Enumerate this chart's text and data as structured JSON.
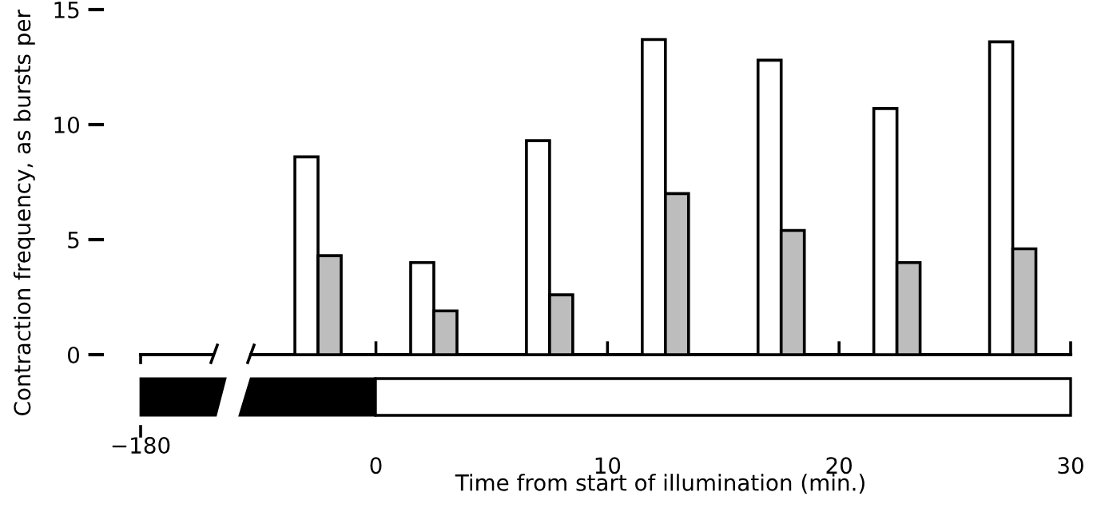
{
  "chart_data": {
    "type": "bar",
    "xlabel": "Time from start of illumination (min.)",
    "ylabel": "Contraction frequency, as bursts per",
    "xlim": [
      -5.4,
      30
    ],
    "xticks": [
      0,
      10,
      20,
      30
    ],
    "ylim": [
      0,
      15
    ],
    "yticks": [
      0,
      5,
      10,
      15
    ],
    "grid": false,
    "annotations": [
      "−180"
    ],
    "series": [
      {
        "color": "#ffffff",
        "x": [
          -3,
          2,
          7,
          12,
          17,
          22,
          27
        ],
        "values": [
          8.6,
          4.0,
          9.3,
          13.7,
          12.8,
          10.7,
          13.6
        ]
      },
      {
        "color": "#bdbdbd",
        "x": [
          -2,
          3,
          8,
          13,
          18,
          23,
          28
        ],
        "values": [
          4.3,
          1.9,
          2.6,
          7.0,
          5.4,
          4.0,
          4.6
        ]
      }
    ]
  }
}
